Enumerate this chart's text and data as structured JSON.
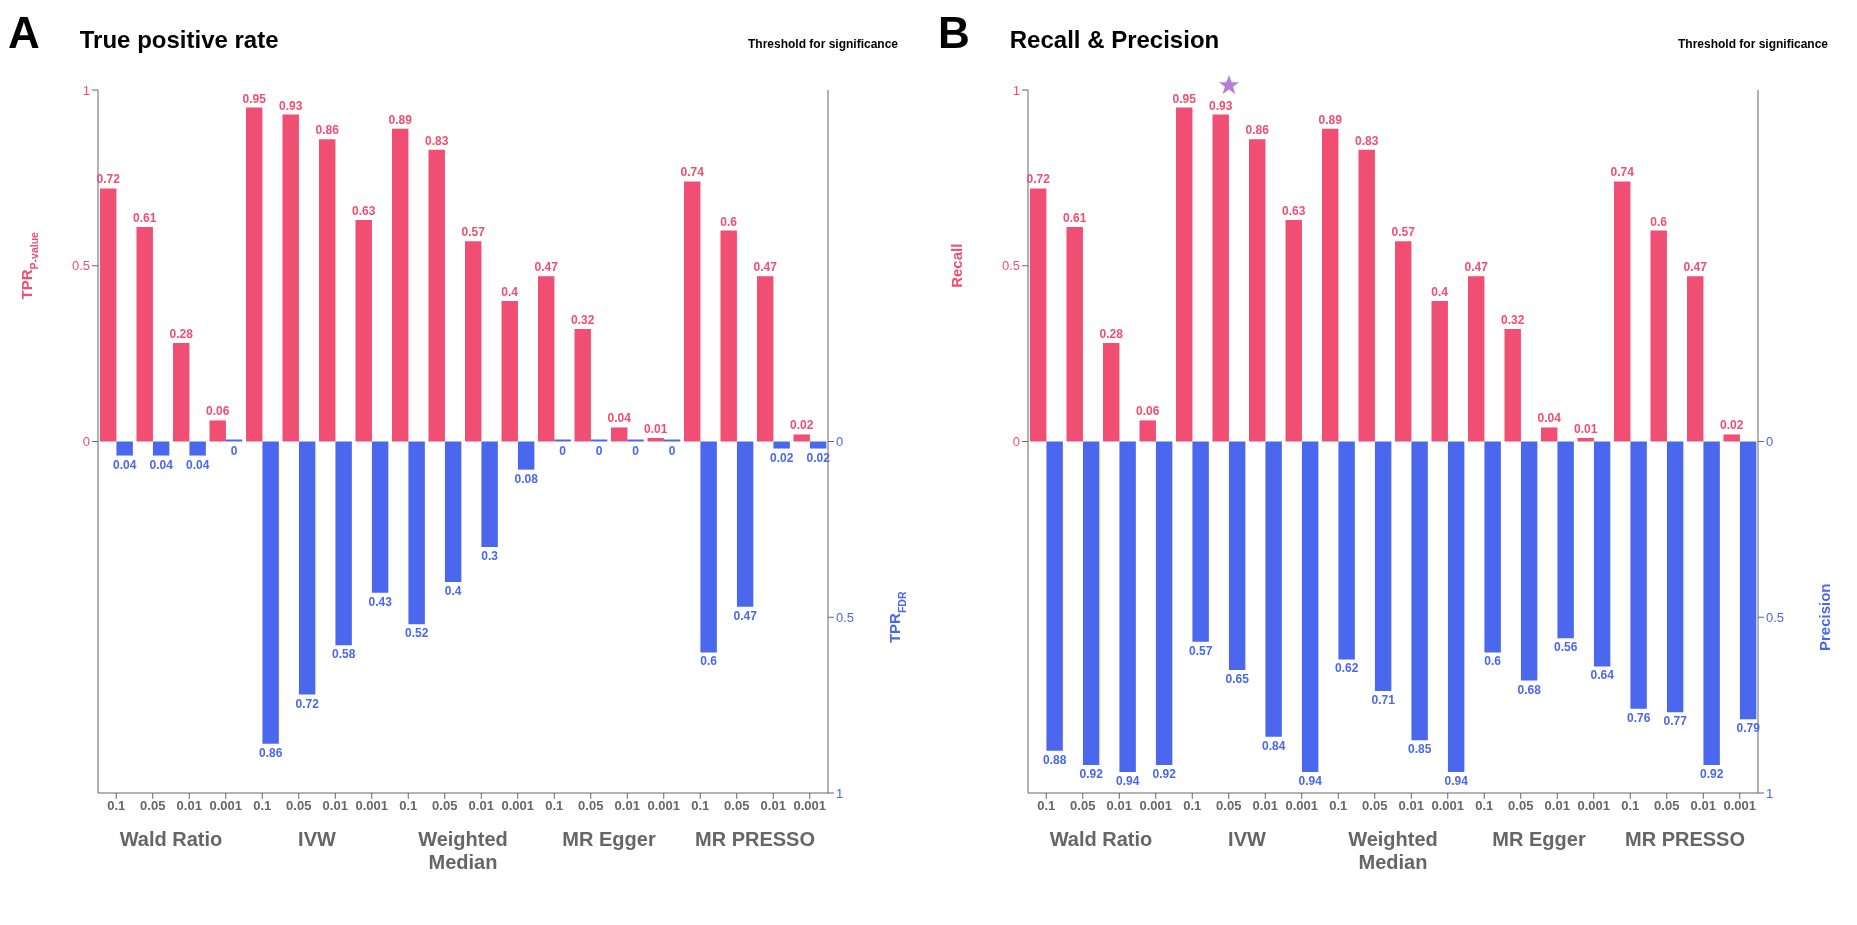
{
  "chart_data": [
    {
      "type": "bar",
      "title": "A",
      "subtitle": "True positive rate",
      "ylabel": "TPR$_{P-value}$",
      "y2label": "TPR$_{FDR}$",
      "annotations": [
        "Threshold for significance",
        "Wald Ratio",
        "IVW",
        "Weighted Median",
        "MR Egger",
        "MR PRESSO"
      ],
      "categories": [
        "0.1",
        "0.05",
        "0.01",
        "0.001",
        "0.1",
        "0.05",
        "0.01",
        "0.001",
        "0.1",
        "0.05",
        "0.01",
        "0.001",
        "0.1",
        "0.05",
        "0.01",
        "0.001",
        "0.1",
        "0.05",
        "0.01",
        "0.001"
      ],
      "series": [
        {
          "color": "#f04e72",
          "values": [
            0.72,
            0.61,
            0.28,
            0.06,
            0.95,
            0.93,
            0.86,
            0.63,
            0.89,
            0.83,
            0.57,
            0.4,
            0.47,
            0.32,
            0.04,
            0.01,
            0.74,
            0.6,
            0.47,
            0.02
          ]
        },
        {
          "color": "#4a67ee",
          "axis": "y2",
          "values": [
            0.04,
            0.04,
            0.04,
            0,
            0.86,
            0.72,
            0.58,
            0.43,
            0.52,
            0.4,
            0.3,
            0.08,
            0,
            0,
            0,
            0,
            0.6,
            0.47,
            0.02,
            0.02
          ]
        }
      ],
      "ylim": [
        -1,
        1
      ],
      "yticks": [
        0,
        0.5,
        1
      ],
      "y2lim": [
        1,
        -1
      ],
      "y2ticks": [
        0,
        0.5,
        1
      ],
      "data_labels": true
    },
    {
      "type": "bar",
      "title": "B",
      "subtitle": "Recall & Precision",
      "ylabel": "Recall",
      "y2label": "Precision",
      "annotations": [
        "Threshold for significance",
        "Wald Ratio",
        "IVW",
        "Weighted Median",
        "MR Egger",
        "MR PRESSO"
      ],
      "categories": [
        "0.1",
        "0.05",
        "0.01",
        "0.001",
        "0.1",
        "0.05",
        "0.01",
        "0.001",
        "0.1",
        "0.05",
        "0.01",
        "0.001",
        "0.1",
        "0.05",
        "0.01",
        "0.001",
        "0.1",
        "0.05",
        "0.01",
        "0.001"
      ],
      "series": [
        {
          "color": "#f04e72",
          "values": [
            0.72,
            0.61,
            0.28,
            0.06,
            0.95,
            0.93,
            0.86,
            0.63,
            0.89,
            0.83,
            0.57,
            0.4,
            0.47,
            0.32,
            0.04,
            0.01,
            0.74,
            0.6,
            0.47,
            0.02
          ]
        },
        {
          "color": "#4a67ee",
          "axis": "y2",
          "values": [
            0.88,
            0.92,
            0.94,
            0.92,
            0.57,
            0.65,
            0.84,
            0.94,
            0.62,
            0.71,
            0.85,
            0.94,
            0.6,
            0.68,
            0.56,
            0.64,
            0.76,
            0.77,
            0.92,
            0.79
          ]
        }
      ],
      "ylim": [
        -1,
        1
      ],
      "yticks": [
        0,
        0.5,
        1
      ],
      "y2lim": [
        1,
        -1
      ],
      "y2ticks": [
        0,
        0.5,
        1
      ],
      "data_labels": true
    }
  ]
}
